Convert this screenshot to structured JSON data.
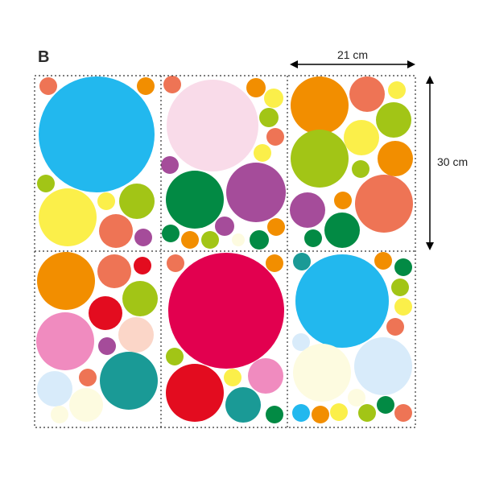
{
  "panel_label": "B",
  "dimensions": {
    "width": "21 cm",
    "height": "30 cm"
  },
  "colors": {
    "sky_blue": "#22b8ee",
    "pink_light": "#f9dbe9",
    "orange": "#f28e00",
    "coral": "#ee7455",
    "yellow": "#fbef4a",
    "lime": "#a2c516",
    "purple": "#a54c9a",
    "green": "#028a44",
    "red": "#e30c1f",
    "pink": "#f08bbf",
    "peach": "#fbd6c8",
    "teal": "#1a9a96",
    "pale_blue": "#d8ebfa",
    "cream": "#fdfbe0",
    "magenta": "#e2004f",
    "border": "#333333"
  }
}
